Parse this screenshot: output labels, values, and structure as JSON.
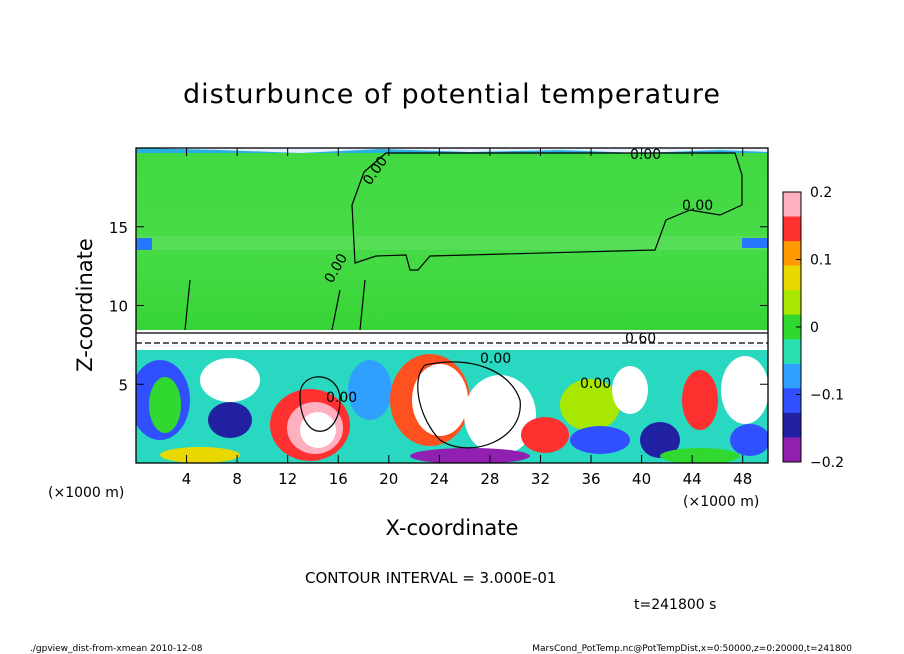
{
  "chart_data": {
    "type": "heatmap",
    "title": "disturbunce of potential temperature",
    "xlabel": "X-coordinate",
    "ylabel": "Z-coordinate",
    "x_unit": "(×1000 m)",
    "y_unit": "(×1000 m)",
    "xlim": [
      0,
      50
    ],
    "ylim": [
      0,
      20
    ],
    "x_ticks": [
      4,
      8,
      12,
      16,
      20,
      24,
      28,
      32,
      36,
      40,
      44,
      48
    ],
    "y_ticks": [
      5,
      10,
      15
    ],
    "colorbar": {
      "min": -0.2,
      "max": 0.2,
      "ticks": [
        "0.2",
        "0.1",
        "0",
        "−0.1",
        "−0.2"
      ],
      "colors": [
        "#ffb0c0",
        "#ff3030",
        "#ff9a00",
        "#e8d800",
        "#a8e800",
        "#30d830",
        "#28e0b0",
        "#30a0ff",
        "#3050ff",
        "#2020a0",
        "#9020b0"
      ]
    },
    "contour_labels": [
      "0.00",
      "0.00",
      "0.00",
      "0.00",
      "0.00",
      "0.60",
      "0.00",
      "0.00"
    ],
    "contour_interval": "CONTOUR INTERVAL = 3.000E-01",
    "time_label": "t=241800 s",
    "footer_left": "./gpview_dist-from-xmean  2010-12-08",
    "footer_right": "MarsCond_PotTemp.nc@PotTempDist,x=0:50000,z=0:20000,t=241800"
  }
}
